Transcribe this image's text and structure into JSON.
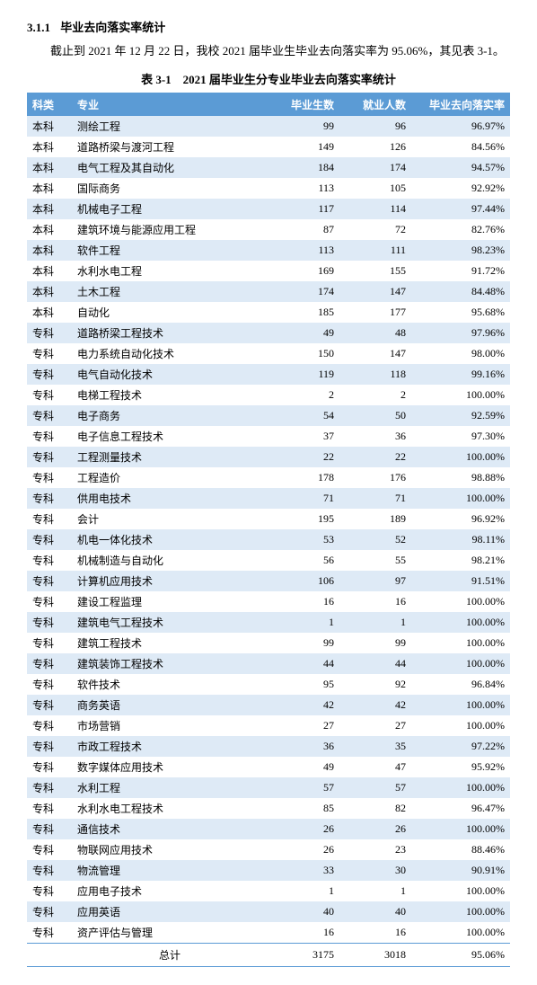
{
  "section": {
    "number": "3.1.1",
    "title": "毕业去向落实率统计",
    "intro": "截止到 2021 年 12 月 22 日，我校 2021 届毕业生毕业去向落实率为 95.06%，其见表 3-1。",
    "table_caption": "表 3-1　2021 届毕业生分专业毕业去向落实率统计"
  },
  "table": {
    "colors": {
      "header_bg": "#5b9bd5",
      "header_fg": "#ffffff",
      "row_even_bg": "#deeaf6",
      "row_odd_bg": "#ffffff",
      "border": "#5b9bd5"
    },
    "columns": [
      "科类",
      "专业",
      "毕业生数",
      "就业人数",
      "毕业去向落实率"
    ],
    "column_align": [
      "left",
      "left",
      "right",
      "right",
      "right"
    ],
    "rows": [
      [
        "本科",
        "测绘工程",
        "99",
        "96",
        "96.97%"
      ],
      [
        "本科",
        "道路桥梁与渡河工程",
        "149",
        "126",
        "84.56%"
      ],
      [
        "本科",
        "电气工程及其自动化",
        "184",
        "174",
        "94.57%"
      ],
      [
        "本科",
        "国际商务",
        "113",
        "105",
        "92.92%"
      ],
      [
        "本科",
        "机械电子工程",
        "117",
        "114",
        "97.44%"
      ],
      [
        "本科",
        "建筑环境与能源应用工程",
        "87",
        "72",
        "82.76%"
      ],
      [
        "本科",
        "软件工程",
        "113",
        "111",
        "98.23%"
      ],
      [
        "本科",
        "水利水电工程",
        "169",
        "155",
        "91.72%"
      ],
      [
        "本科",
        "土木工程",
        "174",
        "147",
        "84.48%"
      ],
      [
        "本科",
        "自动化",
        "185",
        "177",
        "95.68%"
      ],
      [
        "专科",
        "道路桥梁工程技术",
        "49",
        "48",
        "97.96%"
      ],
      [
        "专科",
        "电力系统自动化技术",
        "150",
        "147",
        "98.00%"
      ],
      [
        "专科",
        "电气自动化技术",
        "119",
        "118",
        "99.16%"
      ],
      [
        "专科",
        "电梯工程技术",
        "2",
        "2",
        "100.00%"
      ],
      [
        "专科",
        "电子商务",
        "54",
        "50",
        "92.59%"
      ],
      [
        "专科",
        "电子信息工程技术",
        "37",
        "36",
        "97.30%"
      ],
      [
        "专科",
        "工程测量技术",
        "22",
        "22",
        "100.00%"
      ],
      [
        "专科",
        "工程造价",
        "178",
        "176",
        "98.88%"
      ],
      [
        "专科",
        "供用电技术",
        "71",
        "71",
        "100.00%"
      ],
      [
        "专科",
        "会计",
        "195",
        "189",
        "96.92%"
      ],
      [
        "专科",
        "机电一体化技术",
        "53",
        "52",
        "98.11%"
      ],
      [
        "专科",
        "机械制造与自动化",
        "56",
        "55",
        "98.21%"
      ],
      [
        "专科",
        "计算机应用技术",
        "106",
        "97",
        "91.51%"
      ],
      [
        "专科",
        "建设工程监理",
        "16",
        "16",
        "100.00%"
      ],
      [
        "专科",
        "建筑电气工程技术",
        "1",
        "1",
        "100.00%"
      ],
      [
        "专科",
        "建筑工程技术",
        "99",
        "99",
        "100.00%"
      ],
      [
        "专科",
        "建筑装饰工程技术",
        "44",
        "44",
        "100.00%"
      ],
      [
        "专科",
        "软件技术",
        "95",
        "92",
        "96.84%"
      ],
      [
        "专科",
        "商务英语",
        "42",
        "42",
        "100.00%"
      ],
      [
        "专科",
        "市场营销",
        "27",
        "27",
        "100.00%"
      ],
      [
        "专科",
        "市政工程技术",
        "36",
        "35",
        "97.22%"
      ],
      [
        "专科",
        "数字媒体应用技术",
        "49",
        "47",
        "95.92%"
      ],
      [
        "专科",
        "水利工程",
        "57",
        "57",
        "100.00%"
      ],
      [
        "专科",
        "水利水电工程技术",
        "85",
        "82",
        "96.47%"
      ],
      [
        "专科",
        "通信技术",
        "26",
        "26",
        "100.00%"
      ],
      [
        "专科",
        "物联网应用技术",
        "26",
        "23",
        "88.46%"
      ],
      [
        "专科",
        "物流管理",
        "33",
        "30",
        "90.91%"
      ],
      [
        "专科",
        "应用电子技术",
        "1",
        "1",
        "100.00%"
      ],
      [
        "专科",
        "应用英语",
        "40",
        "40",
        "100.00%"
      ],
      [
        "专科",
        "资产评估与管理",
        "16",
        "16",
        "100.00%"
      ]
    ],
    "total": {
      "label": "总计",
      "grads": "3175",
      "employed": "3018",
      "rate": "95.06%"
    }
  }
}
